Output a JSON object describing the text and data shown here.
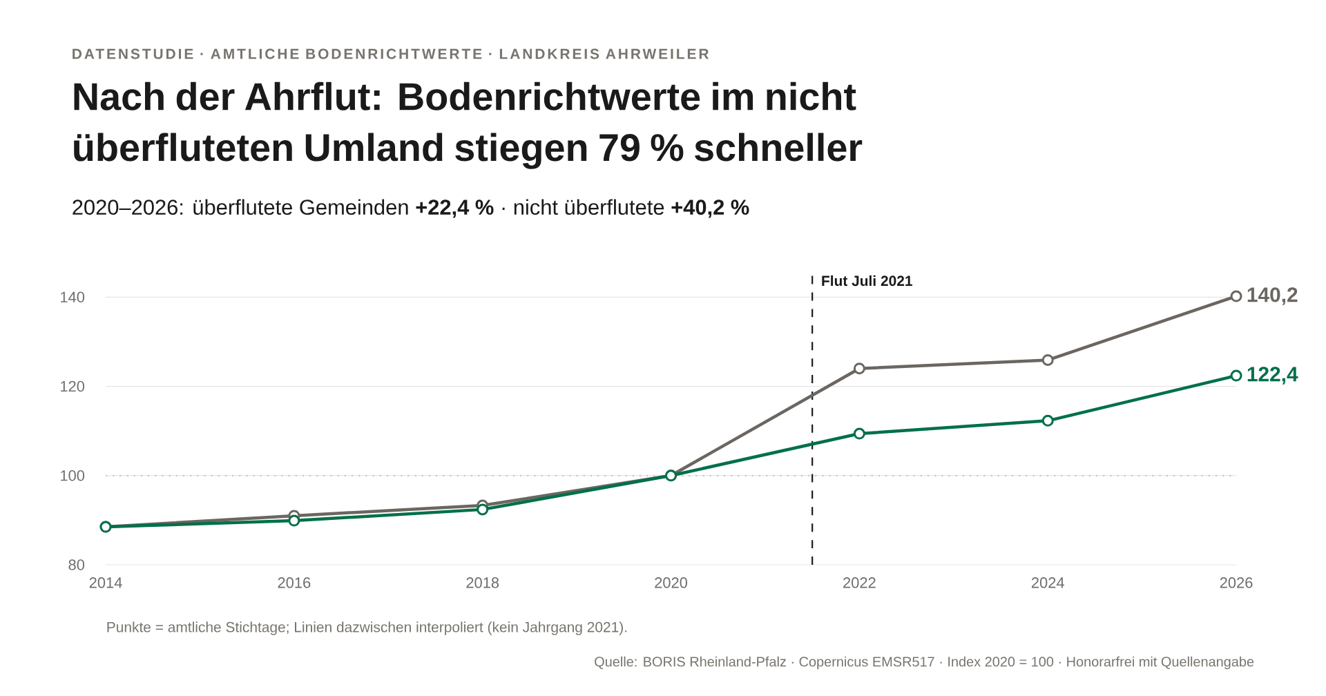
{
  "chart_data": {
    "type": "line",
    "title": "Nach der Ahrflut: Bodenrichtwerte im nicht überfluteten Umland stiegen 79 % schneller",
    "subtitle": "2020–2026: überflutete Gemeinden **+22,4 %** · nicht überflutete **+40,2 %**",
    "annotations": [
      "DATENSTUDIE · AMTLICHE BODENRICHTWERTE · LANDKREIS AHRWEILER",
      "Punkte = amtliche Stichtage; Linien dazwischen interpoliert (kein Jahrgang 2021).",
      "Quelle: BORIS Rheinland-Pfalz · Copernicus EMSR517 · Index 2020 = 100 · Honorarfrei mit Quellenangabe"
    ],
    "x": [
      2014,
      2016,
      2018,
      2020,
      2022,
      2024,
      2026
    ],
    "series": [
      {
        "color": "#6b6661",
        "values": [
          88.5,
          91.0,
          93.3,
          100,
          124.0,
          125.9,
          140.2
        ],
        "value_labels": [
          null,
          null,
          null,
          null,
          null,
          null,
          "140,2"
        ]
      },
      {
        "color": "#00704a",
        "values": [
          88.5,
          89.9,
          92.4,
          100,
          109.4,
          112.3,
          122.4
        ],
        "value_labels": [
          null,
          null,
          null,
          null,
          null,
          null,
          "122,4"
        ]
      }
    ],
    "xlim": [
      2014,
      2026
    ],
    "ylim": [
      80,
      145
    ],
    "xticks": [
      2014,
      2016,
      2018,
      2020,
      2022,
      2024,
      2026
    ],
    "yticks": [
      80,
      100,
      120,
      140
    ],
    "ref_lines": [
      {
        "axis": "x",
        "value": 2021.5,
        "label": "Flut Juli 2021",
        "color": "#1a1a1a",
        "line_style": "dashed"
      },
      {
        "axis": "y",
        "value": 100,
        "color": "#c8c8c8",
        "line_style": "dotted"
      }
    ],
    "grid": "y",
    "marker": "circle",
    "line_style": "solid"
  }
}
